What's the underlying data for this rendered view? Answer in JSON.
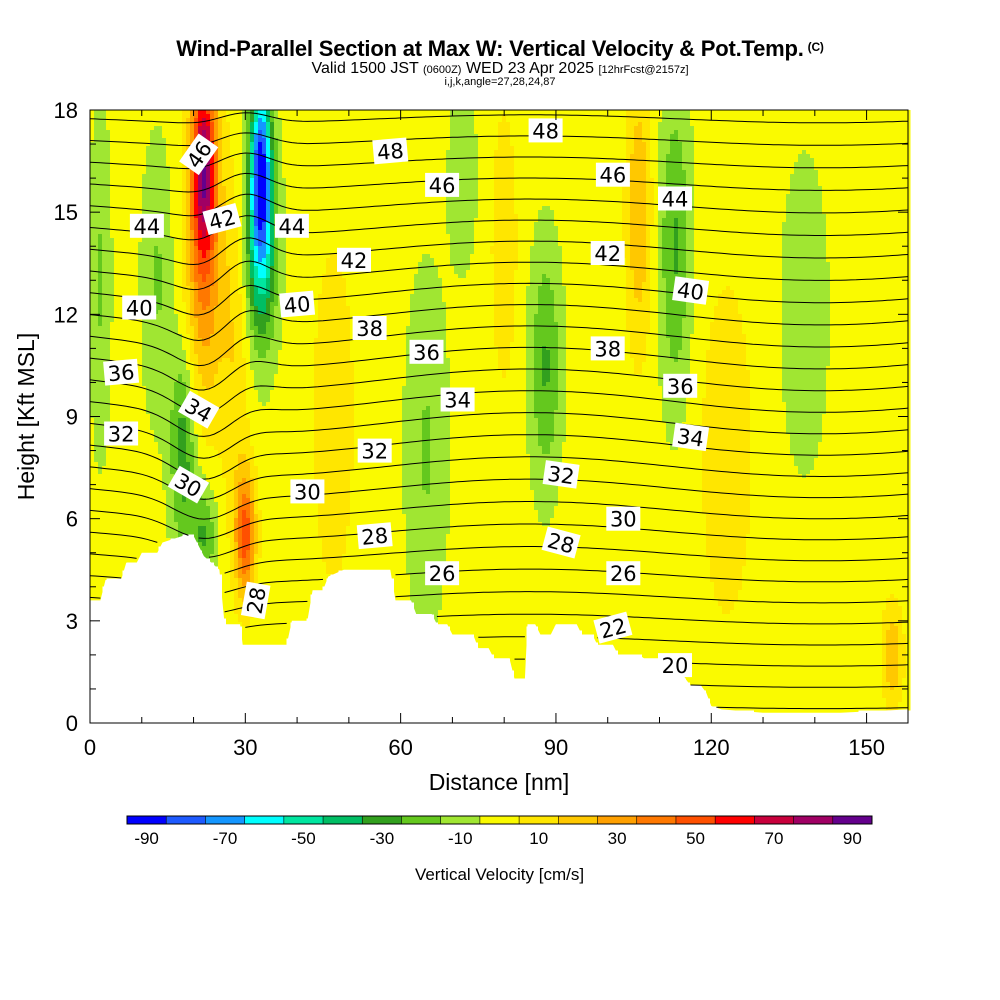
{
  "header": {
    "title": "Wind-Parallel Section at Max W: Vertical Velocity & Pot.Temp.",
    "copyright": "(C)",
    "valid_prefix": "Valid 1500 JST",
    "valid_utc": "(0600Z)",
    "valid_date": "WED 23 Apr 2025",
    "forecast": "[12hrFcst@2157z]",
    "indices": "i,j,k,angle=27,28,24,87"
  },
  "chart_data": {
    "type": "heatmap",
    "title": "Wind-Parallel Section at Max W: Vertical Velocity & Pot.Temp.",
    "xlabel": "Distance [nm]",
    "ylabel": "Height [Kft MSL]",
    "xlim": [
      0,
      158
    ],
    "ylim": [
      0,
      18
    ],
    "x_ticks": [
      0,
      30,
      60,
      90,
      120,
      150
    ],
    "y_ticks": [
      0,
      3,
      6,
      9,
      12,
      15,
      18
    ],
    "grid": false,
    "colorbar": {
      "label": "Vertical Velocity [cm/s]",
      "levels": [
        -90,
        -80,
        -70,
        -60,
        -50,
        -40,
        -30,
        -20,
        -10,
        0,
        10,
        20,
        30,
        40,
        50,
        60,
        70,
        80,
        90,
        100
      ],
      "tick_labels": [
        "-90",
        "-70",
        "-50",
        "-30",
        "-10",
        "10",
        "30",
        "50",
        "70",
        "90"
      ],
      "colors": [
        "#0000ff",
        "#1e5aff",
        "#1496ff",
        "#00ffff",
        "#00e6a0",
        "#00be64",
        "#32a01e",
        "#64c81e",
        "#a0e632",
        "#fafa00",
        "#ffe600",
        "#ffc800",
        "#ffa000",
        "#ff7800",
        "#ff5000",
        "#ff0000",
        "#c8003c",
        "#a00064",
        "#64008c"
      ]
    },
    "terrain_kft": [
      [
        0,
        3.6
      ],
      [
        2,
        3.6
      ],
      [
        3,
        4.2
      ],
      [
        6,
        4.2
      ],
      [
        7,
        4.7
      ],
      [
        9,
        4.7
      ],
      [
        10,
        5.0
      ],
      [
        13,
        5.0
      ],
      [
        14,
        5.3
      ],
      [
        18,
        5.5
      ],
      [
        20,
        5.5
      ],
      [
        22,
        4.9
      ],
      [
        25,
        4.5
      ],
      [
        26,
        2.9
      ],
      [
        29,
        2.9
      ],
      [
        29.5,
        2.3
      ],
      [
        38,
        2.3
      ],
      [
        39,
        3.0
      ],
      [
        42,
        3.0
      ],
      [
        43,
        3.9
      ],
      [
        45,
        3.9
      ],
      [
        46,
        4.3
      ],
      [
        49,
        4.5
      ],
      [
        58,
        4.5
      ],
      [
        59,
        3.6
      ],
      [
        62,
        3.6
      ],
      [
        63,
        3.2
      ],
      [
        66,
        3.2
      ],
      [
        67,
        2.9
      ],
      [
        69,
        2.9
      ],
      [
        70,
        2.6
      ],
      [
        74,
        2.6
      ],
      [
        75,
        2.2
      ],
      [
        77,
        2.2
      ],
      [
        78,
        1.9
      ],
      [
        81,
        1.9
      ],
      [
        82,
        1.3
      ],
      [
        84,
        1.3
      ],
      [
        84.5,
        2.9
      ],
      [
        86,
        2.9
      ],
      [
        87,
        2.6
      ],
      [
        89,
        2.6
      ],
      [
        90,
        2.9
      ],
      [
        94,
        2.9
      ],
      [
        95,
        2.6
      ],
      [
        97,
        2.6
      ],
      [
        98,
        2.3
      ],
      [
        101,
        2.3
      ],
      [
        102,
        2.0
      ],
      [
        106,
        2.0
      ],
      [
        107,
        1.9
      ],
      [
        110,
        1.9
      ],
      [
        111,
        1.6
      ],
      [
        114,
        1.6
      ],
      [
        115,
        1.3
      ],
      [
        116,
        1.1
      ],
      [
        118,
        1.1
      ],
      [
        119,
        0.9
      ],
      [
        120,
        0.5
      ],
      [
        122,
        0.4
      ],
      [
        130,
        0.3
      ],
      [
        145,
        0.3
      ],
      [
        158,
        0.4
      ]
    ],
    "w_features": [
      {
        "x": 22,
        "y": 16.5,
        "w": 60,
        "sx": 2.2,
        "sy": 2.5
      },
      {
        "x": 22,
        "y": 14.0,
        "w": 40,
        "sx": 3.5,
        "sy": 4.5
      },
      {
        "x": 30,
        "y": 5.5,
        "w": 50,
        "sx": 2.0,
        "sy": 1.8
      },
      {
        "x": 28,
        "y": 11.0,
        "w": 15,
        "sx": 3.0,
        "sy": 5.0
      },
      {
        "x": 33,
        "y": 16.5,
        "w": -70,
        "sx": 2.0,
        "sy": 2.5
      },
      {
        "x": 33,
        "y": 14.0,
        "w": -50,
        "sx": 3.0,
        "sy": 3.0
      },
      {
        "x": 18,
        "y": 8.0,
        "w": -30,
        "sx": 2.5,
        "sy": 3.0
      },
      {
        "x": 22,
        "y": 5.5,
        "w": -25,
        "sx": 2.5,
        "sy": 1.5
      },
      {
        "x": 2,
        "y": 13.0,
        "w": -15,
        "sx": 2.0,
        "sy": 5.0
      },
      {
        "x": 13,
        "y": 13.0,
        "w": -15,
        "sx": 3.0,
        "sy": 4.0
      },
      {
        "x": 47,
        "y": 9.0,
        "w": 15,
        "sx": 4.0,
        "sy": 5.0
      },
      {
        "x": 65,
        "y": 8.0,
        "w": -15,
        "sx": 4.0,
        "sy": 5.0
      },
      {
        "x": 72,
        "y": 16.0,
        "w": -10,
        "sx": 3.0,
        "sy": 3.0
      },
      {
        "x": 80,
        "y": 14.0,
        "w": 15,
        "sx": 2.5,
        "sy": 4.0
      },
      {
        "x": 88,
        "y": 10.5,
        "w": -25,
        "sx": 3.0,
        "sy": 3.5
      },
      {
        "x": 106,
        "y": 15.0,
        "w": 25,
        "sx": 2.5,
        "sy": 4.0
      },
      {
        "x": 113,
        "y": 14.0,
        "w": -25,
        "sx": 3.0,
        "sy": 4.5
      },
      {
        "x": 123,
        "y": 8.0,
        "w": 15,
        "sx": 5.0,
        "sy": 5.0
      },
      {
        "x": 138,
        "y": 12.0,
        "w": -10,
        "sx": 5.0,
        "sy": 5.0
      },
      {
        "x": 155,
        "y": 2.0,
        "w": 25,
        "sx": 2.0,
        "sy": 1.5
      }
    ],
    "theta_contours": {
      "min": 20,
      "max": 50,
      "interval": 1
    },
    "contour_labels": [
      {
        "text": "46",
        "x": 21,
        "y": 16.7,
        "angle": -55
      },
      {
        "text": "44",
        "x": 11,
        "y": 14.6,
        "angle": 0
      },
      {
        "text": "42",
        "x": 25.5,
        "y": 14.8,
        "angle": -15
      },
      {
        "text": "44",
        "x": 39,
        "y": 14.6,
        "angle": 0
      },
      {
        "text": "48",
        "x": 58,
        "y": 16.8,
        "angle": -5
      },
      {
        "text": "46",
        "x": 68,
        "y": 15.8,
        "angle": 0
      },
      {
        "text": "42",
        "x": 51,
        "y": 13.6,
        "angle": 0
      },
      {
        "text": "40",
        "x": 9.5,
        "y": 12.2,
        "angle": 0
      },
      {
        "text": "40",
        "x": 40,
        "y": 12.3,
        "angle": -5
      },
      {
        "text": "38",
        "x": 54,
        "y": 11.6,
        "angle": 0
      },
      {
        "text": "36",
        "x": 6,
        "y": 10.3,
        "angle": -5
      },
      {
        "text": "36",
        "x": 65,
        "y": 10.9,
        "angle": 0
      },
      {
        "text": "34",
        "x": 21,
        "y": 9.2,
        "angle": 30
      },
      {
        "text": "34",
        "x": 71,
        "y": 9.5,
        "angle": 0
      },
      {
        "text": "32",
        "x": 6,
        "y": 8.5,
        "angle": 0
      },
      {
        "text": "32",
        "x": 55,
        "y": 8.0,
        "angle": 0
      },
      {
        "text": "30",
        "x": 19,
        "y": 7.0,
        "angle": 30
      },
      {
        "text": "30",
        "x": 42,
        "y": 6.8,
        "angle": 0
      },
      {
        "text": "28",
        "x": 55,
        "y": 5.5,
        "angle": -5
      },
      {
        "text": "28",
        "x": 32,
        "y": 3.6,
        "angle": -80
      },
      {
        "text": "26",
        "x": 68,
        "y": 4.4,
        "angle": 0
      },
      {
        "text": "48",
        "x": 88,
        "y": 17.4,
        "angle": 0
      },
      {
        "text": "46",
        "x": 101,
        "y": 16.1,
        "angle": 0
      },
      {
        "text": "44",
        "x": 113,
        "y": 15.4,
        "angle": 0
      },
      {
        "text": "42",
        "x": 100,
        "y": 13.8,
        "angle": 0
      },
      {
        "text": "40",
        "x": 116,
        "y": 12.7,
        "angle": 8
      },
      {
        "text": "38",
        "x": 100,
        "y": 11.0,
        "angle": 0
      },
      {
        "text": "36",
        "x": 114,
        "y": 9.9,
        "angle": 0
      },
      {
        "text": "34",
        "x": 116,
        "y": 8.4,
        "angle": 8
      },
      {
        "text": "32",
        "x": 91,
        "y": 7.3,
        "angle": 8
      },
      {
        "text": "30",
        "x": 103,
        "y": 6.0,
        "angle": 0
      },
      {
        "text": "28",
        "x": 91,
        "y": 5.3,
        "angle": 15
      },
      {
        "text": "26",
        "x": 103,
        "y": 4.4,
        "angle": 0
      },
      {
        "text": "22",
        "x": 101,
        "y": 2.8,
        "angle": -15
      },
      {
        "text": "20",
        "x": 113,
        "y": 1.7,
        "angle": 0
      }
    ]
  }
}
